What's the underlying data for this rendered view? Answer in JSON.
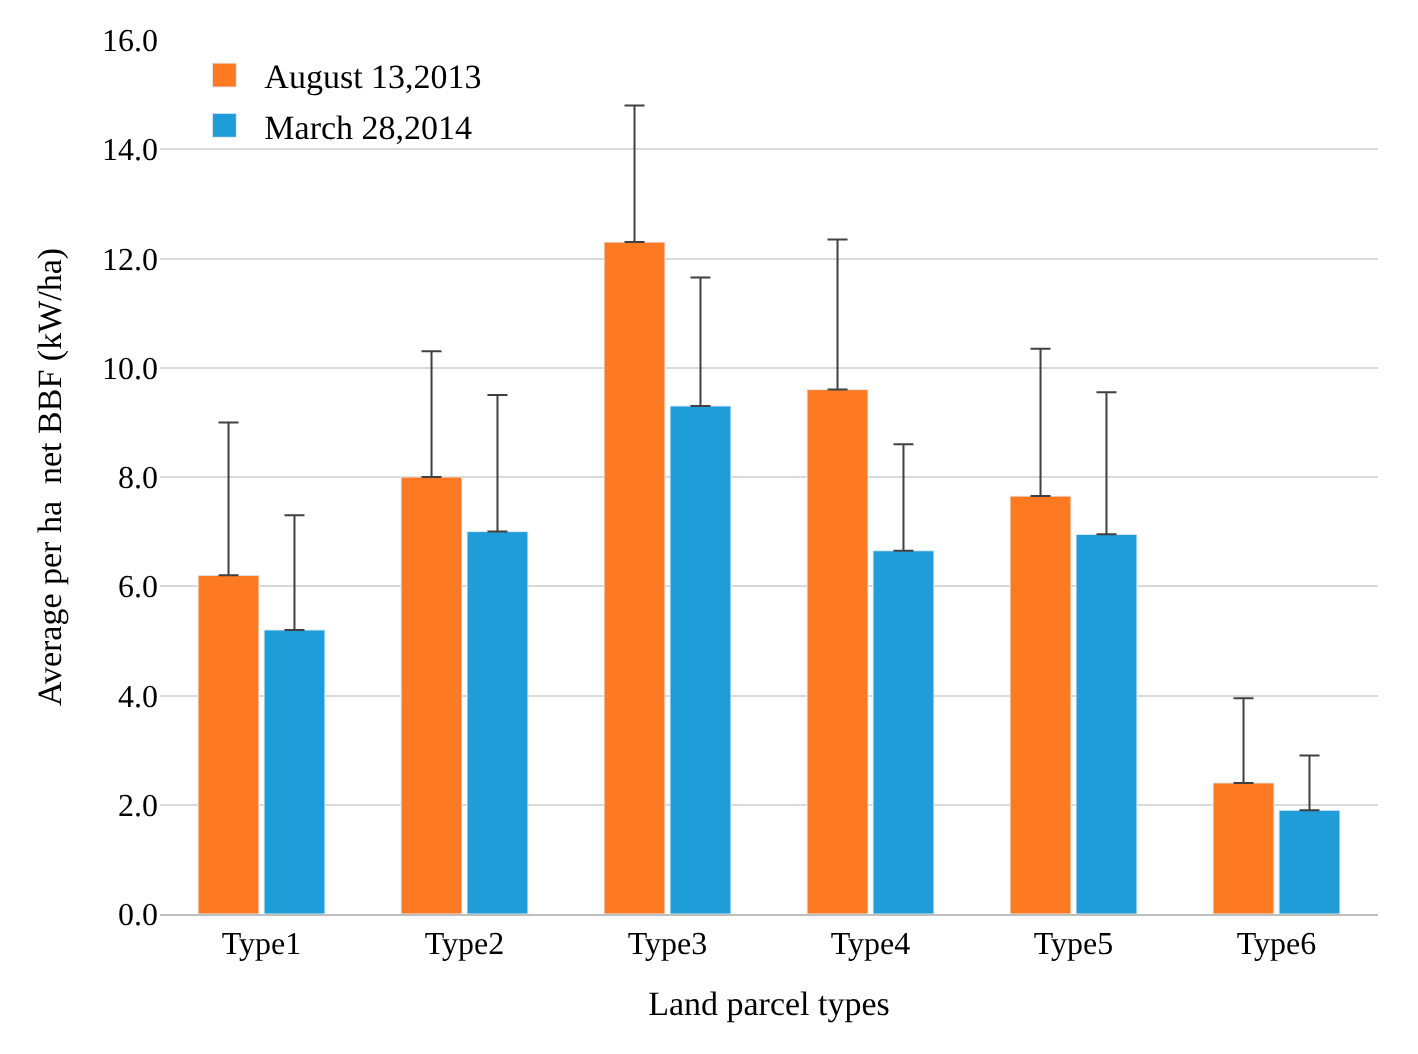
{
  "chart_data": {
    "type": "bar",
    "xlabel": "Land parcel types",
    "ylabel": "Average per ha  net BBF (kW/ha)",
    "categories": [
      "Type1",
      "Type2",
      "Type3",
      "Type4",
      "Type5",
      "Type6"
    ],
    "series": [
      {
        "name": "August 13,2013",
        "color": "#fd7a23",
        "values": [
          6.2,
          8.0,
          12.3,
          9.6,
          7.65,
          2.4
        ],
        "errors": [
          [
            6.2,
            9.0
          ],
          [
            8.0,
            10.3
          ],
          [
            12.3,
            14.8
          ],
          [
            9.6,
            12.35
          ],
          [
            7.65,
            10.35
          ],
          [
            2.4,
            3.95
          ]
        ]
      },
      {
        "name": "March 28,2014",
        "color": "#1f9dd8",
        "values": [
          5.2,
          7.0,
          9.3,
          6.65,
          6.95,
          1.9
        ],
        "errors": [
          [
            5.2,
            7.3
          ],
          [
            7.0,
            9.5
          ],
          [
            9.3,
            11.65
          ],
          [
            6.65,
            8.6
          ],
          [
            6.95,
            9.55
          ],
          [
            1.9,
            2.9
          ]
        ]
      }
    ],
    "ylim": [
      0,
      16
    ],
    "yticks": [
      {
        "value": 0,
        "label": "0.0"
      },
      {
        "value": 2,
        "label": "2.0"
      },
      {
        "value": 4,
        "label": "4.0"
      },
      {
        "value": 6,
        "label": "6.0"
      },
      {
        "value": 8,
        "label": "8.0"
      },
      {
        "value": 10,
        "label": "10.0"
      },
      {
        "value": 12,
        "label": "12.0"
      },
      {
        "value": 14,
        "label": "14.0"
      },
      {
        "value": 16,
        "label": "16.0"
      }
    ],
    "grid": "y",
    "legend": "top left"
  }
}
